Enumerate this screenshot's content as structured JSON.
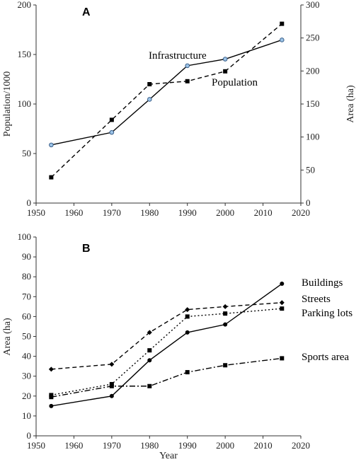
{
  "chart_data": [
    {
      "panel": "A",
      "type": "line",
      "xlim": [
        1950,
        2020
      ],
      "xticks": [
        1950,
        1960,
        1970,
        1980,
        1990,
        2000,
        2010,
        2020
      ],
      "ylabel": "Population/1000",
      "ylim": [
        0,
        200
      ],
      "yticks": [
        0,
        50,
        100,
        150,
        200
      ],
      "y2label": "Area (ha)",
      "y2lim": [
        0,
        300
      ],
      "y2ticks": [
        0,
        50,
        100,
        150,
        200,
        250,
        300
      ],
      "grid": false,
      "series": [
        {
          "name": "Infrastructure",
          "axis": "right",
          "style": "solid",
          "marker": "circle-blue",
          "x": [
            1954,
            1970,
            1980,
            1990,
            2000,
            2015
          ],
          "y": [
            88,
            107,
            157,
            208,
            218,
            247
          ]
        },
        {
          "name": "Population",
          "axis": "left",
          "style": "dashed",
          "marker": "square",
          "x": [
            1954,
            1970,
            1980,
            1990,
            2000,
            2015
          ],
          "y": [
            26,
            84,
            120,
            123,
            133,
            181
          ]
        }
      ]
    },
    {
      "panel": "B",
      "type": "line",
      "xlabel": "Year",
      "xlim": [
        1950,
        2020
      ],
      "xticks": [
        1950,
        1960,
        1970,
        1980,
        1990,
        2000,
        2010,
        2020
      ],
      "ylabel": "Area (ha)",
      "ylim": [
        0,
        100
      ],
      "yticks": [
        0,
        10,
        20,
        30,
        40,
        50,
        60,
        70,
        80,
        90,
        100
      ],
      "grid": false,
      "series": [
        {
          "name": "Buildings",
          "style": "solid",
          "marker": "circle",
          "x": [
            1954,
            1970,
            1980,
            1990,
            2000,
            2015
          ],
          "y": [
            15,
            20,
            38,
            52,
            56,
            76.5
          ]
        },
        {
          "name": "Streets",
          "style": "dashed",
          "marker": "diamond",
          "x": [
            1954,
            1970,
            1980,
            1990,
            2000,
            2015
          ],
          "y": [
            33.5,
            36,
            52,
            63.5,
            65,
            67
          ]
        },
        {
          "name": "Parking lots",
          "style": "dotted",
          "marker": "square",
          "x": [
            1954,
            1970,
            1980,
            1990,
            2000,
            2015
          ],
          "y": [
            20.5,
            26,
            43,
            60,
            61.5,
            64
          ]
        },
        {
          "name": "Sports area",
          "style": "dashdot",
          "marker": "square",
          "x": [
            1954,
            1970,
            1980,
            1990,
            2000,
            2015
          ],
          "y": [
            19.5,
            25,
            25,
            32,
            35.5,
            39
          ]
        }
      ]
    }
  ]
}
